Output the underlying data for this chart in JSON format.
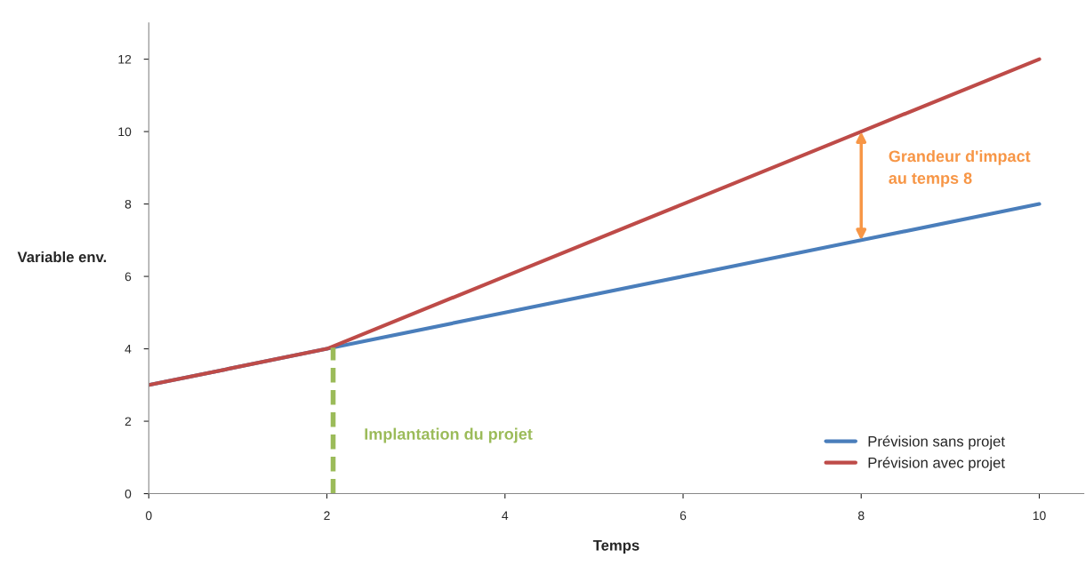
{
  "chart_data": {
    "type": "line",
    "xlabel": "Temps",
    "ylabel": "Variable env.",
    "x": [
      0,
      2,
      4,
      6,
      8,
      10
    ],
    "series": [
      {
        "name": "Prévision sans projet",
        "color": "#4a7ebb",
        "values": [
          3,
          4,
          5,
          6,
          7,
          8
        ]
      },
      {
        "name": "Prévision avec projet",
        "color": "#be4b48",
        "values": [
          3,
          4,
          6,
          8,
          10,
          12
        ]
      }
    ],
    "ref_lines": [
      {
        "axis": "x",
        "value": 2.07,
        "label": "Implantation du projet",
        "color": "#9bbb59",
        "line_style": "dashed"
      }
    ],
    "annotations": [
      {
        "text": "Grandeur d'impact\nau temps 8",
        "x": 8,
        "y": 10
      }
    ],
    "xlim": [
      0,
      10.5
    ],
    "xticks": [
      0,
      2,
      4,
      6,
      8,
      10
    ],
    "ylim": [
      0,
      13
    ],
    "yticks": [
      0,
      2,
      4,
      6,
      8,
      10,
      12
    ],
    "grid": false,
    "legend": "bottom right",
    "marker": "none",
    "line_style": "solid"
  }
}
